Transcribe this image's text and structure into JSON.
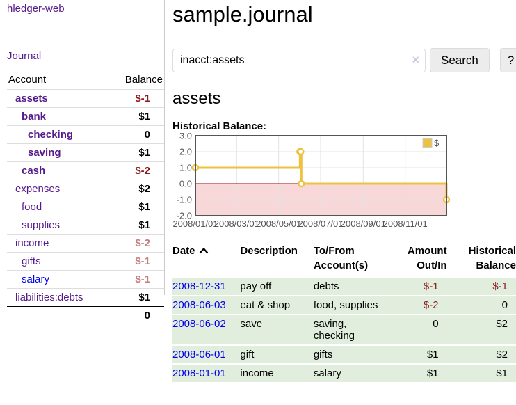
{
  "sidebar": {
    "brand": "hledger-web",
    "journal_link": "Journal",
    "accounts": {
      "header_account": "Account",
      "header_balance": "Balance",
      "rows": [
        {
          "name": "assets",
          "indent": 0,
          "balance": "$-1",
          "bold": true,
          "balance_class": "neg-strong",
          "link_class": ""
        },
        {
          "name": "bank",
          "indent": 1,
          "balance": "$1",
          "bold": true,
          "balance_class": "",
          "link_class": ""
        },
        {
          "name": "checking",
          "indent": 2,
          "balance": "0",
          "bold": true,
          "balance_class": "",
          "link_class": ""
        },
        {
          "name": "saving",
          "indent": 2,
          "balance": "$1",
          "bold": true,
          "balance_class": "",
          "link_class": ""
        },
        {
          "name": "cash",
          "indent": 1,
          "balance": "$-2",
          "bold": true,
          "balance_class": "neg-strong",
          "link_class": ""
        },
        {
          "name": "expenses",
          "indent": 0,
          "balance": "$2",
          "bold": false,
          "balance_class": "",
          "link_class": ""
        },
        {
          "name": "food",
          "indent": 1,
          "balance": "$1",
          "bold": false,
          "balance_class": "",
          "link_class": ""
        },
        {
          "name": "supplies",
          "indent": 1,
          "balance": "$1",
          "bold": false,
          "balance_class": "",
          "link_class": ""
        },
        {
          "name": "income",
          "indent": 0,
          "balance": "$-2",
          "bold": false,
          "balance_class": "neg-soft",
          "link_class": ""
        },
        {
          "name": "gifts",
          "indent": 1,
          "balance": "$-1",
          "bold": false,
          "balance_class": "neg-soft",
          "link_class": ""
        },
        {
          "name": "salary",
          "indent": 1,
          "balance": "$-1",
          "bold": false,
          "balance_class": "neg-soft",
          "link_class": "blue"
        },
        {
          "name": "liabilities:debts",
          "indent": 0,
          "balance": "$1",
          "bold": false,
          "balance_class": "",
          "link_class": ""
        }
      ],
      "total": "0"
    }
  },
  "main": {
    "title": "sample.journal",
    "search": {
      "value": "inacct:assets",
      "clear_icon": "×",
      "button_label": "Search",
      "help_label": "?"
    },
    "account_heading": "assets"
  },
  "chart_data": {
    "type": "line",
    "step": true,
    "title": "Historical Balance:",
    "series": [
      {
        "name": "$",
        "color": "#edc240",
        "points": [
          [
            "2008-01-01",
            1
          ],
          [
            "2008-06-01",
            2
          ],
          [
            "2008-06-02",
            2
          ],
          [
            "2008-06-03",
            0
          ],
          [
            "2008-12-31",
            -1
          ]
        ]
      }
    ],
    "xrange": [
      "2008-01-01",
      "2008-12-31"
    ],
    "ylim": [
      -2,
      3
    ],
    "yticks": [
      3,
      2,
      1,
      0,
      -1,
      -2
    ],
    "xticks": [
      "2008/01/01",
      "2008/03/01",
      "2008/05/01",
      "2008/07/01",
      "2008/09/01",
      "2008/11/01"
    ],
    "legend": {
      "label": "$",
      "position": "top-right"
    },
    "grid": true,
    "negative_fill": "#f7d7d7",
    "zero_line_color": "#990000",
    "border_color": "#545454",
    "grid_color": "#e3e3e3",
    "label_color": "#545454"
  },
  "register": {
    "headers": [
      {
        "line1": "Date",
        "line2": "",
        "sort": "asc"
      },
      {
        "line1": "Description",
        "line2": ""
      },
      {
        "line1": "To/From",
        "line2": "Account(s)"
      },
      {
        "line1": "Amount",
        "line2": "Out/In"
      },
      {
        "line1": "Historical",
        "line2": "Balance"
      }
    ],
    "rows": [
      {
        "date": "2008-12-31",
        "description": "pay off",
        "accounts": "debts",
        "amount": "$-1",
        "amount_negative": true,
        "balance": "$-1",
        "balance_negative": true
      },
      {
        "date": "2008-06-03",
        "description": "eat & shop",
        "accounts": "food, supplies",
        "amount": "$-2",
        "amount_negative": true,
        "balance": "0",
        "balance_negative": false
      },
      {
        "date": "2008-06-02",
        "description": "save",
        "accounts": "saving, checking",
        "amount": "0",
        "amount_negative": false,
        "balance": "$2",
        "balance_negative": false
      },
      {
        "date": "2008-06-01",
        "description": "gift",
        "accounts": "gifts",
        "amount": "$1",
        "amount_negative": false,
        "balance": "$2",
        "balance_negative": false
      },
      {
        "date": "2008-01-01",
        "description": "income",
        "accounts": "salary",
        "amount": "$1",
        "amount_negative": false,
        "balance": "$1",
        "balance_negative": false
      }
    ]
  }
}
